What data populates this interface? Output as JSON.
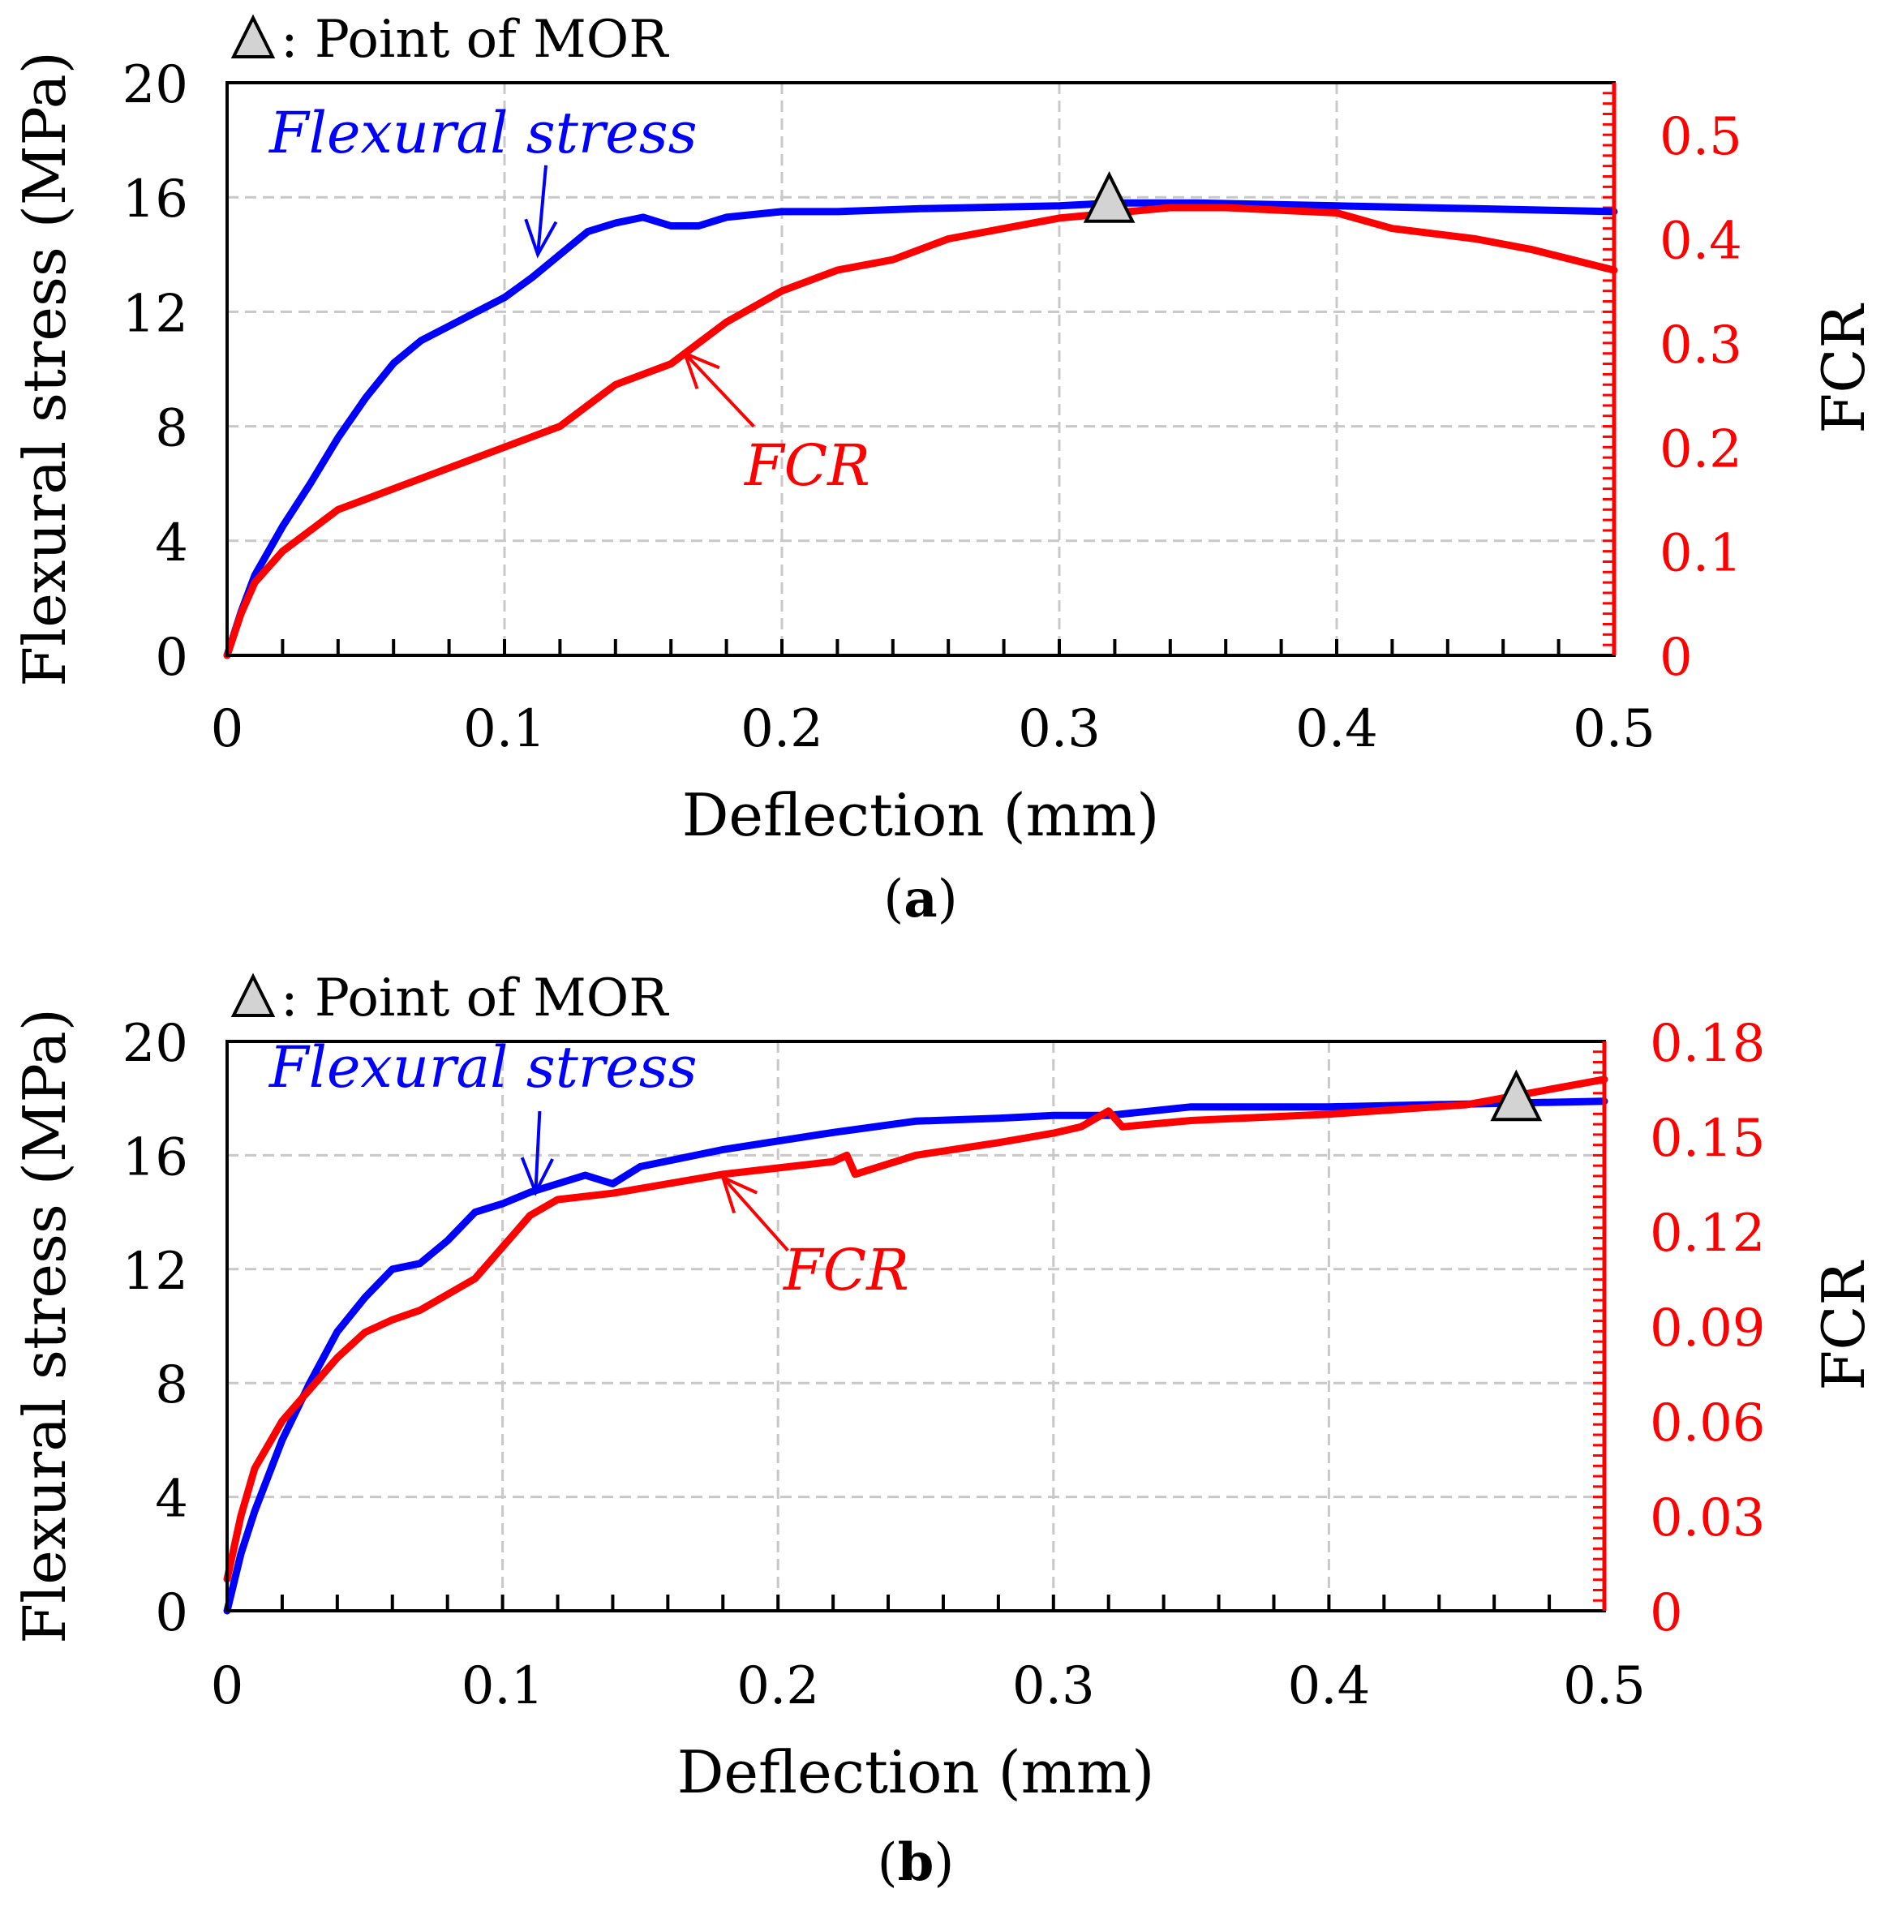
{
  "chart_data": [
    {
      "type": "line",
      "panel_label": "a",
      "legend_marker": "gray-triangle",
      "legend_text": ": Point of MOR",
      "xlabel": "Deflection  (mm)",
      "ylabel": "Flexural  stress  (MPa)",
      "y2label": "FCR",
      "xlim": [
        0,
        0.5
      ],
      "ylim": [
        0,
        20
      ],
      "y2lim": [
        0,
        0.55
      ],
      "x_ticks": [
        "0",
        "0.1",
        "0.2",
        "0.3",
        "0.4",
        "0.5"
      ],
      "y_ticks": [
        "0",
        "4",
        "8",
        "12",
        "16",
        "20"
      ],
      "y2_ticks": [
        "0",
        "0.1",
        "0.2",
        "0.3",
        "0.4",
        "0.5"
      ],
      "grid": true,
      "colors": {
        "stress": "#0000ff",
        "fcr": "#ff0000",
        "marker": "#d3d3d3"
      },
      "series": [
        {
          "name": "Flexural stress",
          "axis": "left",
          "x": [
            0,
            0.005,
            0.01,
            0.02,
            0.03,
            0.04,
            0.05,
            0.06,
            0.07,
            0.08,
            0.09,
            0.1,
            0.11,
            0.12,
            0.13,
            0.14,
            0.15,
            0.16,
            0.17,
            0.18,
            0.2,
            0.22,
            0.25,
            0.3,
            0.32,
            0.35,
            0.4,
            0.45,
            0.5
          ],
          "values": [
            0,
            1.5,
            2.8,
            4.5,
            6.0,
            7.6,
            9.0,
            10.2,
            11.0,
            11.5,
            12.0,
            12.5,
            13.2,
            14.0,
            14.8,
            15.1,
            15.3,
            15.0,
            15.0,
            15.3,
            15.5,
            15.5,
            15.6,
            15.7,
            15.8,
            15.8,
            15.7,
            15.6,
            15.5
          ]
        },
        {
          "name": "FCR",
          "axis": "right",
          "x": [
            0,
            0.005,
            0.01,
            0.02,
            0.03,
            0.04,
            0.05,
            0.06,
            0.07,
            0.08,
            0.09,
            0.1,
            0.11,
            0.12,
            0.13,
            0.14,
            0.15,
            0.16,
            0.17,
            0.18,
            0.2,
            0.22,
            0.24,
            0.26,
            0.28,
            0.3,
            0.32,
            0.34,
            0.36,
            0.4,
            0.42,
            0.45,
            0.47,
            0.5
          ],
          "values": [
            0,
            0.04,
            0.07,
            0.1,
            0.12,
            0.14,
            0.15,
            0.16,
            0.17,
            0.18,
            0.19,
            0.2,
            0.21,
            0.22,
            0.24,
            0.26,
            0.27,
            0.28,
            0.3,
            0.32,
            0.35,
            0.37,
            0.38,
            0.4,
            0.41,
            0.42,
            0.425,
            0.43,
            0.43,
            0.425,
            0.41,
            0.4,
            0.39,
            0.37
          ]
        }
      ],
      "annotations": [
        {
          "text": "Flexural stress",
          "series": "Flexural stress",
          "point_x": 0.112,
          "point_y": 14.0
        },
        {
          "text": "FCR",
          "series": "FCR",
          "point_x": 0.165,
          "point_y": 0.29
        },
        {
          "marker": "MOR",
          "x": 0.318,
          "y": 15.9
        }
      ]
    },
    {
      "type": "line",
      "panel_label": "b",
      "legend_marker": "gray-triangle",
      "legend_text": ": Point of MOR",
      "xlabel": "Deflection  (mm)",
      "ylabel": "Flexural  stress  (MPa)",
      "y2label": "FCR",
      "xlim": [
        0,
        0.5
      ],
      "ylim": [
        0,
        20
      ],
      "y2lim": [
        0,
        0.18
      ],
      "x_ticks": [
        "0",
        "0.1",
        "0.2",
        "0.3",
        "0.4",
        "0.5"
      ],
      "y_ticks": [
        "0",
        "4",
        "8",
        "12",
        "16",
        "20"
      ],
      "y2_ticks": [
        "0",
        "0.03",
        "0.06",
        "0.09",
        "0.12",
        "0.15",
        "0.18"
      ],
      "grid": true,
      "colors": {
        "stress": "#0000ff",
        "fcr": "#ff0000",
        "marker": "#d3d3d3"
      },
      "series": [
        {
          "name": "Flexural stress",
          "axis": "left",
          "x": [
            0,
            0.005,
            0.01,
            0.02,
            0.03,
            0.04,
            0.05,
            0.06,
            0.07,
            0.08,
            0.09,
            0.1,
            0.11,
            0.12,
            0.13,
            0.14,
            0.15,
            0.16,
            0.18,
            0.2,
            0.22,
            0.25,
            0.28,
            0.3,
            0.32,
            0.35,
            0.4,
            0.45,
            0.5
          ],
          "values": [
            0,
            2.0,
            3.5,
            6.0,
            8.0,
            9.8,
            11.0,
            12.0,
            12.2,
            13.0,
            14.0,
            14.3,
            14.7,
            15.0,
            15.3,
            15.0,
            15.6,
            15.8,
            16.2,
            16.5,
            16.8,
            17.2,
            17.3,
            17.4,
            17.4,
            17.7,
            17.7,
            17.8,
            17.9
          ]
        },
        {
          "name": "FCR",
          "axis": "right",
          "x": [
            0,
            0.005,
            0.01,
            0.02,
            0.03,
            0.04,
            0.05,
            0.06,
            0.07,
            0.08,
            0.09,
            0.1,
            0.11,
            0.12,
            0.14,
            0.16,
            0.18,
            0.2,
            0.22,
            0.225,
            0.228,
            0.25,
            0.28,
            0.3,
            0.31,
            0.32,
            0.325,
            0.35,
            0.4,
            0.45,
            0.5
          ],
          "values": [
            0.01,
            0.03,
            0.045,
            0.06,
            0.07,
            0.08,
            0.088,
            0.092,
            0.095,
            0.1,
            0.105,
            0.115,
            0.125,
            0.13,
            0.132,
            0.135,
            0.138,
            0.14,
            0.142,
            0.144,
            0.138,
            0.144,
            0.148,
            0.151,
            0.153,
            0.158,
            0.153,
            0.155,
            0.157,
            0.16,
            0.168
          ]
        }
      ],
      "annotations": [
        {
          "text": "Flexural stress",
          "series": "Flexural stress",
          "point_x": 0.112,
          "point_y": 14.7
        },
        {
          "text": "FCR",
          "series": "FCR",
          "point_x": 0.18,
          "point_y": 0.137
        },
        {
          "marker": "MOR",
          "x": 0.468,
          "y": 18.0
        }
      ]
    }
  ]
}
